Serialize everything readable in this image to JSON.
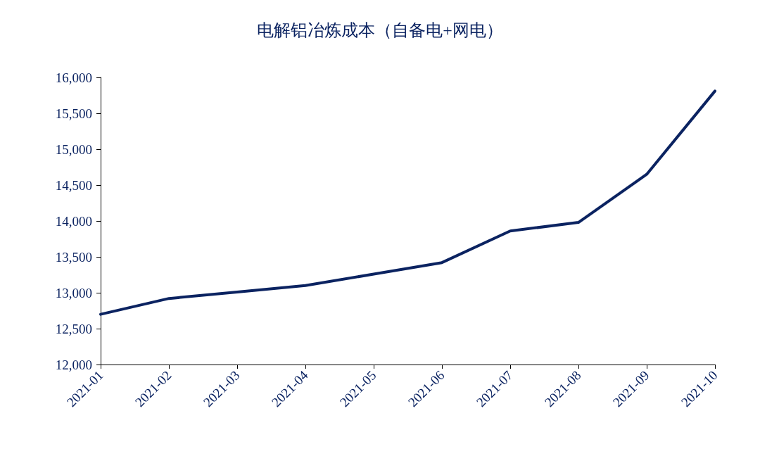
{
  "chart_data": {
    "type": "line",
    "title": "电解铝冶炼成本（自备电+网电）",
    "categories": [
      "2021-01",
      "2021-02",
      "2021-03",
      "2021-04",
      "2021-05",
      "2021-06",
      "2021-07",
      "2021-08",
      "2021-09",
      "2021-10"
    ],
    "series": [
      {
        "color": "#0b2361",
        "values": [
          12700,
          12920,
          13010,
          13100,
          13260,
          13420,
          13860,
          13980,
          14650,
          15810
        ]
      }
    ],
    "ylim": [
      12000,
      16000
    ],
    "yticks": [
      {
        "value": 12000,
        "label": "12,000"
      },
      {
        "value": 12500,
        "label": "12,500"
      },
      {
        "value": 13000,
        "label": "13,000"
      },
      {
        "value": 13500,
        "label": "13,500"
      },
      {
        "value": 14000,
        "label": "14,000"
      },
      {
        "value": 14500,
        "label": "14,500"
      },
      {
        "value": 15000,
        "label": "15,000"
      },
      {
        "value": 15500,
        "label": "15,500"
      },
      {
        "value": 16000,
        "label": "16,000"
      }
    ],
    "grid": false,
    "marker": "none",
    "line_style": "solid"
  }
}
